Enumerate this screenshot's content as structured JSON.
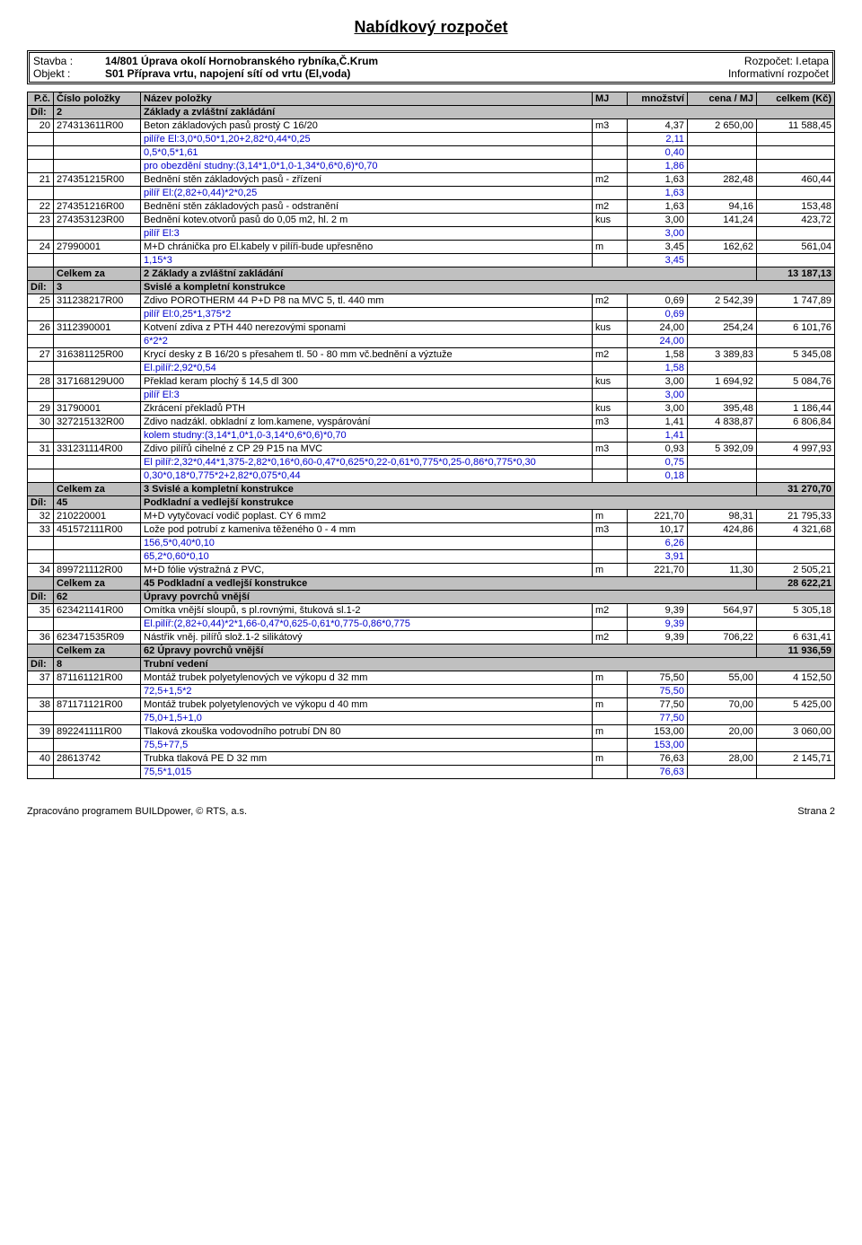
{
  "title": "Nabídkový rozpočet",
  "meta": {
    "stavba_label": "Stavba :",
    "stavba": "14/801 Úprava okolí Hornobranského rybníka,Č.Krum",
    "objekt_label": "Objekt :",
    "objekt": "S01 Příprava vrtu, napojení sítí od vrtu (El,voda)",
    "rozpocet_label": "Rozpočet:",
    "rozpocet": "I.etapa",
    "info": "Informativní rozpočet"
  },
  "headers": {
    "pc": "P.č.",
    "cislo": "Číslo položky",
    "nazev": "Název položky",
    "mj": "MJ",
    "mnoz": "množství",
    "cena": "cena / MJ",
    "celkem": "celkem (Kč)"
  },
  "rows": [
    {
      "type": "section",
      "dil": "Díl:",
      "num": "2",
      "nazev": "Základy a zvláštní zakládání"
    },
    {
      "type": "item",
      "pc": "20",
      "cislo": "274313611R00",
      "nazev": "Beton základových pasů prostý C 16/20",
      "mj": "m3",
      "mnoz": "4,37",
      "cena": "2 650,00",
      "celkem": "11 588,45"
    },
    {
      "type": "calc",
      "nazev": "pilíře El:3,0*0,50*1,20+2,82*0,44*0,25",
      "mnoz": "2,11"
    },
    {
      "type": "calc",
      "nazev": "0,5*0,5*1,61",
      "mnoz": "0,40"
    },
    {
      "type": "calc",
      "nazev": "pro obezdění studny:(3,14*1,0*1,0-1,34*0,6*0,6)*0,70",
      "mnoz": "1,86"
    },
    {
      "type": "item",
      "pc": "21",
      "cislo": "274351215R00",
      "nazev": "Bednění stěn základových pasů - zřízení",
      "mj": "m2",
      "mnoz": "1,63",
      "cena": "282,48",
      "celkem": "460,44"
    },
    {
      "type": "calc",
      "nazev": "pilíř El:(2,82+0,44)*2*0,25",
      "mnoz": "1,63"
    },
    {
      "type": "item",
      "pc": "22",
      "cislo": "274351216R00",
      "nazev": "Bednění stěn základových pasů - odstranění",
      "mj": "m2",
      "mnoz": "1,63",
      "cena": "94,16",
      "celkem": "153,48"
    },
    {
      "type": "item",
      "pc": "23",
      "cislo": "274353123R00",
      "nazev": "Bednění kotev.otvorů pasů do 0,05 m2, hl. 2 m",
      "mj": "kus",
      "mnoz": "3,00",
      "cena": "141,24",
      "celkem": "423,72"
    },
    {
      "type": "calc",
      "nazev": "pilíř El:3",
      "mnoz": "3,00"
    },
    {
      "type": "item",
      "pc": "24",
      "cislo": "27990001",
      "nazev": "M+D chránička pro El.kabely v pilíři-bude upřesněno",
      "mj": "m",
      "mnoz": "3,45",
      "cena": "162,62",
      "celkem": "561,04"
    },
    {
      "type": "calc",
      "nazev": "1,15*3",
      "mnoz": "3,45"
    },
    {
      "type": "summary",
      "za": "Celkem za",
      "nazev": "2 Základy a zvláštní zakládání",
      "celkem": "13 187,13"
    },
    {
      "type": "section",
      "dil": "Díl:",
      "num": "3",
      "nazev": "Svislé a kompletní konstrukce"
    },
    {
      "type": "item",
      "pc": "25",
      "cislo": "311238217R00",
      "nazev": "Zdivo POROTHERM 44 P+D P8 na MVC 5, tl. 440 mm",
      "mj": "m2",
      "mnoz": "0,69",
      "cena": "2 542,39",
      "celkem": "1 747,89"
    },
    {
      "type": "calc",
      "nazev": "pilíř El:0,25*1,375*2",
      "mnoz": "0,69"
    },
    {
      "type": "item",
      "pc": "26",
      "cislo": "3112390001",
      "nazev": "Kotvení zdiva z PTH 440 nerezovými sponami",
      "mj": "kus",
      "mnoz": "24,00",
      "cena": "254,24",
      "celkem": "6 101,76"
    },
    {
      "type": "calc",
      "nazev": "6*2*2",
      "mnoz": "24,00"
    },
    {
      "type": "item",
      "pc": "27",
      "cislo": "316381125R00",
      "nazev": "Krycí desky z B 16/20 s přesahem tl. 50 - 80 mm vč.bednění a výztuže",
      "mj": "m2",
      "mnoz": "1,58",
      "cena": "3 389,83",
      "celkem": "5 345,08"
    },
    {
      "type": "calc",
      "nazev": "El.pilíř:2,92*0,54",
      "mnoz": "1,58"
    },
    {
      "type": "item",
      "pc": "28",
      "cislo": "317168129U00",
      "nazev": "Překlad keram plochý š 14,5 dl 300",
      "mj": "kus",
      "mnoz": "3,00",
      "cena": "1 694,92",
      "celkem": "5 084,76"
    },
    {
      "type": "calc",
      "nazev": "pilíř El:3",
      "mnoz": "3,00"
    },
    {
      "type": "item",
      "pc": "29",
      "cislo": "31790001",
      "nazev": "Zkrácení překladů PTH",
      "mj": "kus",
      "mnoz": "3,00",
      "cena": "395,48",
      "celkem": "1 186,44"
    },
    {
      "type": "item",
      "pc": "30",
      "cislo": "327215132R00",
      "nazev": "Zdivo nadzákl. obkladní z lom.kamene, vyspárování",
      "mj": "m3",
      "mnoz": "1,41",
      "cena": "4 838,87",
      "celkem": "6 806,84"
    },
    {
      "type": "calc",
      "nazev": "kolem studny:(3,14*1,0*1,0-3,14*0,6*0,6)*0,70",
      "mnoz": "1,41"
    },
    {
      "type": "item",
      "pc": "31",
      "cislo": "331231114R00",
      "nazev": "Zdivo pilířů cihelné z CP 29 P15 na MVC",
      "mj": "m3",
      "mnoz": "0,93",
      "cena": "5 392,09",
      "celkem": "4 997,93"
    },
    {
      "type": "calc",
      "nazev": "El pilíř:2,32*0,44*1,375-2,82*0,16*0,60-0,47*0,625*0,22-0,61*0,775*0,25-0,86*0,775*0,30",
      "mnoz": "0,75"
    },
    {
      "type": "calc",
      "nazev": "0,30*0,18*0,775*2+2,82*0,075*0,44",
      "mnoz": "0,18"
    },
    {
      "type": "summary",
      "za": "Celkem za",
      "nazev": "3 Svislé a kompletní konstrukce",
      "celkem": "31 270,70"
    },
    {
      "type": "section",
      "dil": "Díl:",
      "num": "45",
      "nazev": "Podkladní a vedlejší konstrukce"
    },
    {
      "type": "item",
      "pc": "32",
      "cislo": "210220001",
      "nazev": "M+D vytyčovací vodič poplast. CY 6 mm2",
      "mj": "m",
      "mnoz": "221,70",
      "cena": "98,31",
      "celkem": "21 795,33"
    },
    {
      "type": "item",
      "pc": "33",
      "cislo": "451572111R00",
      "nazev": "Lože pod potrubí z kameniva těženého 0 - 4 mm",
      "mj": "m3",
      "mnoz": "10,17",
      "cena": "424,86",
      "celkem": "4 321,68"
    },
    {
      "type": "calc",
      "nazev": "156,5*0,40*0,10",
      "mnoz": "6,26"
    },
    {
      "type": "calc",
      "nazev": "65,2*0,60*0,10",
      "mnoz": "3,91"
    },
    {
      "type": "item",
      "pc": "34",
      "cislo": "899721112R00",
      "nazev": "M+D fólie výstražná z PVC,",
      "mj": "m",
      "mnoz": "221,70",
      "cena": "11,30",
      "celkem": "2 505,21"
    },
    {
      "type": "summary",
      "za": "Celkem za",
      "nazev": "45 Podkladní a vedlejší konstrukce",
      "celkem": "28 622,21"
    },
    {
      "type": "section",
      "dil": "Díl:",
      "num": "62",
      "nazev": "Úpravy povrchů vnější"
    },
    {
      "type": "item",
      "pc": "35",
      "cislo": "623421141R00",
      "nazev": "Omítka vnější sloupů, s pl.rovnými, štuková sl.1-2",
      "mj": "m2",
      "mnoz": "9,39",
      "cena": "564,97",
      "celkem": "5 305,18"
    },
    {
      "type": "calc",
      "nazev": "El.pilíř:(2,82+0,44)*2*1,66-0,47*0,625-0,61*0,775-0,86*0,775",
      "mnoz": "9,39"
    },
    {
      "type": "item",
      "pc": "36",
      "cislo": "623471535R09",
      "nazev": "Nástřik vněj. pilířů slož.1-2 silikátový",
      "mj": "m2",
      "mnoz": "9,39",
      "cena": "706,22",
      "celkem": "6 631,41"
    },
    {
      "type": "summary",
      "za": "Celkem za",
      "nazev": "62 Úpravy povrchů vnější",
      "celkem": "11 936,59"
    },
    {
      "type": "section",
      "dil": "Díl:",
      "num": "8",
      "nazev": "Trubní vedení"
    },
    {
      "type": "item",
      "pc": "37",
      "cislo": "871161121R00",
      "nazev": "Montáž trubek polyetylenových ve výkopu d 32 mm",
      "mj": "m",
      "mnoz": "75,50",
      "cena": "55,00",
      "celkem": "4 152,50"
    },
    {
      "type": "calc",
      "nazev": "72,5+1,5*2",
      "mnoz": "75,50"
    },
    {
      "type": "item",
      "pc": "38",
      "cislo": "871171121R00",
      "nazev": "Montáž trubek polyetylenových ve výkopu d 40 mm",
      "mj": "m",
      "mnoz": "77,50",
      "cena": "70,00",
      "celkem": "5 425,00"
    },
    {
      "type": "calc",
      "nazev": "75,0+1,5+1,0",
      "mnoz": "77,50"
    },
    {
      "type": "item",
      "pc": "39",
      "cislo": "892241111R00",
      "nazev": "Tlaková zkouška vodovodního potrubí DN 80",
      "mj": "m",
      "mnoz": "153,00",
      "cena": "20,00",
      "celkem": "3 060,00"
    },
    {
      "type": "calc",
      "nazev": "75,5+77,5",
      "mnoz": "153,00"
    },
    {
      "type": "item",
      "pc": "40",
      "cislo": "28613742",
      "nazev": "Trubka tlaková PE  D 32  mm",
      "mj": "m",
      "mnoz": "76,63",
      "cena": "28,00",
      "celkem": "2 145,71"
    },
    {
      "type": "calc",
      "nazev": "75,5*1,015",
      "mnoz": "76,63"
    }
  ],
  "footer": {
    "left": "Zpracováno programem BUILDpower,  © RTS, a.s.",
    "right": "Strana 2"
  }
}
